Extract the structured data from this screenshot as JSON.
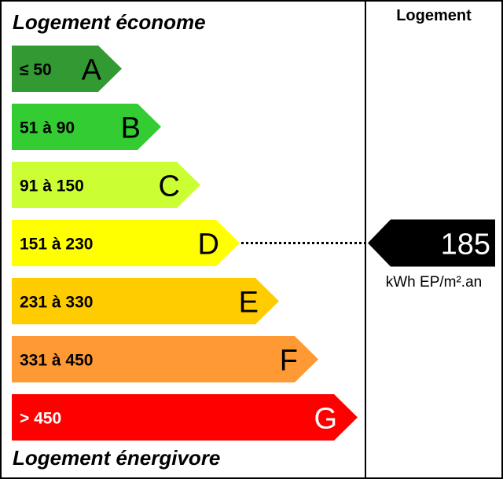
{
  "header": {
    "top_label": "Logement économe",
    "bottom_label": "Logement énergivore",
    "column_title": "Logement"
  },
  "chart_data": {
    "type": "bar",
    "categories": [
      "A",
      "B",
      "C",
      "D",
      "E",
      "F",
      "G"
    ],
    "ranges": [
      "≤ 50",
      "51 à 90",
      "91 à 150",
      "151 à 230",
      "231 à 330",
      "331 à 450",
      "> 450"
    ],
    "colors": [
      "#339933",
      "#33cc33",
      "#ccff33",
      "#ffff00",
      "#ffcc00",
      "#ff9933",
      "#ff0000"
    ],
    "label_colors": [
      "#000000",
      "#000000",
      "#000000",
      "#000000",
      "#000000",
      "#000000",
      "#ffffff"
    ],
    "value": 185,
    "value_class": "D",
    "unit": "kWh EP/m².an"
  }
}
